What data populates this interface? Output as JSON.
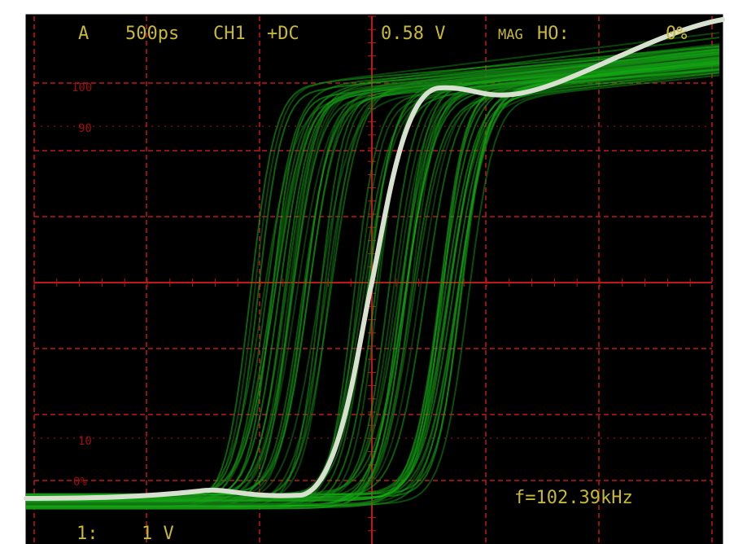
{
  "header": {
    "trigger": "A",
    "timebase": "500ps",
    "channel": "CH1",
    "coupling": "+DC",
    "level": "0.58 V",
    "mag": "MAG",
    "holdoff_label": "HO:",
    "holdoff": "0%"
  },
  "scale_labels": {
    "top": "100",
    "upper": "90",
    "lower": "10",
    "bottom": "0%"
  },
  "frequency": "f=102.39kHz",
  "footer": {
    "channel_num": "1:",
    "volts_per_div": "1 V"
  }
}
